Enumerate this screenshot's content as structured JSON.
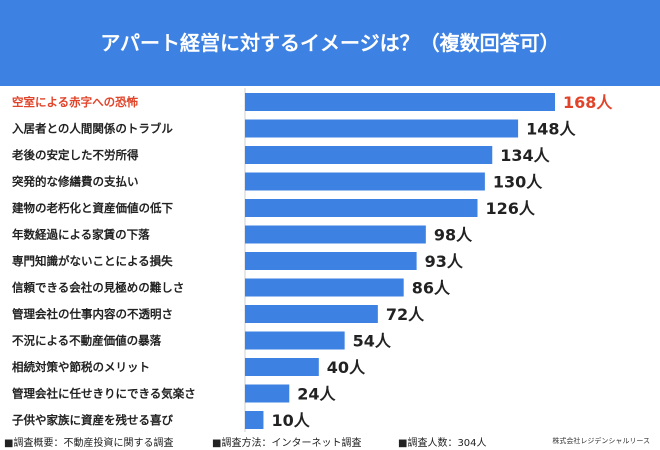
{
  "title": "アパート経営に対するイメージは？（複数回答可）",
  "chart_data": {
    "type": "bar",
    "orientation": "horizontal",
    "categories": [
      "空室による赤字への恐怖",
      "入居者との人間関係のトラブル",
      "老後の安定した不労所得",
      "突発的な修繕費の支払い",
      "建物の老朽化と資産価値の低下",
      "年数経過による家賃の下落",
      "専門知識がないことによる損失",
      "信頼できる会社の見極めの難しさ",
      "管理会社の仕事内容の不透明さ",
      "不況による不動産価値の暴落",
      "相続対策や節税のメリット",
      "管理会社に任せきりにできる気楽さ",
      "子供や家族に資産を残せる喜び"
    ],
    "values": [
      168,
      148,
      134,
      130,
      126,
      98,
      93,
      86,
      72,
      54,
      40,
      24,
      10
    ],
    "value_suffix": "人",
    "highlight_index": 0,
    "bar_color": "#3d82e3",
    "highlight_color": "#e0442a",
    "label_color": "#222222"
  },
  "footer": {
    "item1": "■調査概要：不動産投資に関する調査",
    "item2": "■調査方法：インターネット調査",
    "item3": "■調査人数：304人",
    "credit": "株式会社レジデンシャルリース"
  }
}
